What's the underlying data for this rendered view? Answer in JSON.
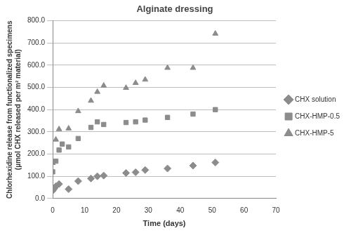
{
  "chart_data": {
    "type": "scatter",
    "title": "Alginate dressing",
    "x_label": "Time (days)",
    "y_label": [
      "Chlorhexidine release from functionalized specimens",
      "(µmol CHX released per m² material)"
    ],
    "xlim": [
      0,
      70
    ],
    "xticks": [
      0,
      10,
      20,
      30,
      40,
      50,
      60,
      70
    ],
    "ylim": [
      0,
      800
    ],
    "yticks": [
      {
        "value": 0,
        "label": "0.0"
      },
      {
        "value": 100,
        "label": "100.0"
      },
      {
        "value": 200,
        "label": "200.0"
      },
      {
        "value": 300,
        "label": "300.0"
      },
      {
        "value": 400,
        "label": "400.0"
      },
      {
        "value": 500,
        "label": "500.0"
      },
      {
        "value": 600,
        "label": "600.0"
      },
      {
        "value": 700,
        "label": "700.0"
      },
      {
        "value": 800,
        "label": "800.0"
      }
    ],
    "grid": "y",
    "legend": "right",
    "series": [
      {
        "name": "CHX solution",
        "color": "#8c8c8c",
        "marker": "diamond",
        "x": [
          0,
          0.5,
          1,
          2,
          5,
          8,
          12,
          14,
          16,
          23,
          26,
          29,
          36,
          44,
          51
        ],
        "values": [
          35,
          45,
          55,
          65,
          42,
          78,
          90,
          100,
          103,
          115,
          118,
          128,
          135,
          148,
          162
        ]
      },
      {
        "name": "CHX-HMP-0.5",
        "color": "#8c8c8c",
        "marker": "square",
        "x": [
          0,
          1,
          2,
          3,
          5,
          8,
          12,
          14,
          16,
          23,
          26,
          29,
          36,
          44,
          51
        ],
        "values": [
          120,
          168,
          218,
          245,
          232,
          270,
          320,
          345,
          333,
          342,
          345,
          353,
          365,
          380,
          400
        ]
      },
      {
        "name": "CHX-HMP-5",
        "color": "#8c8c8c",
        "marker": "triangle",
        "x": [
          0,
          1,
          2,
          5,
          8,
          12,
          14,
          16,
          23,
          26,
          29,
          36,
          44,
          51
        ],
        "values": [
          160,
          265,
          312,
          315,
          393,
          440,
          480,
          508,
          498,
          520,
          535,
          588,
          588,
          742
        ]
      }
    ]
  }
}
